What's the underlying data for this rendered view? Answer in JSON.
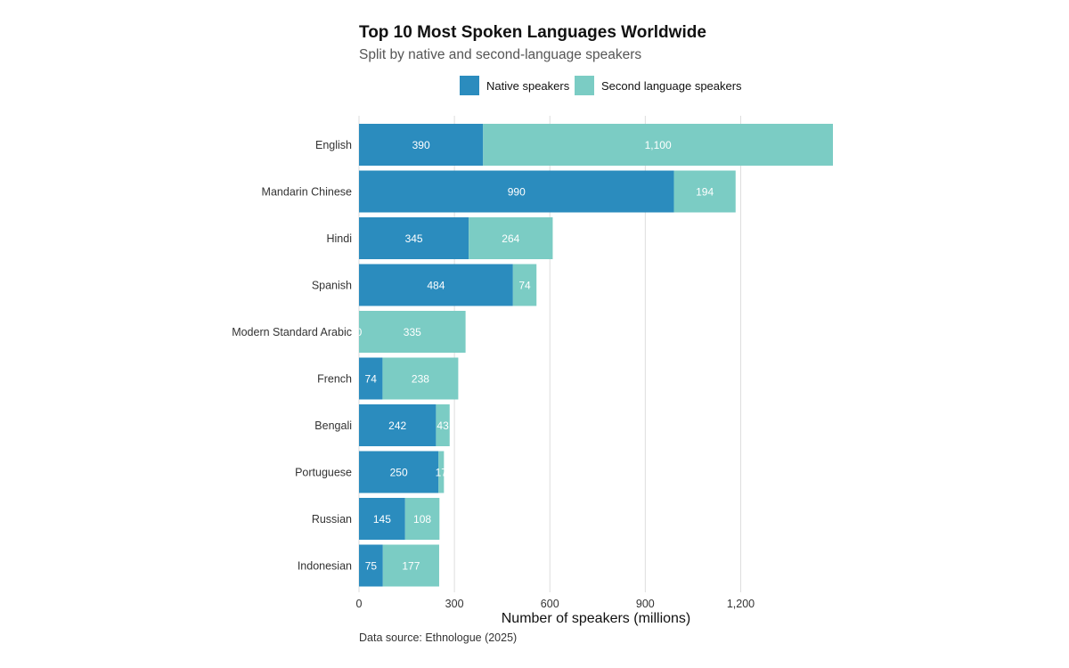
{
  "chart_data": {
    "type": "bar",
    "orientation": "horizontal",
    "stacked": true,
    "title": "Top 10 Most Spoken Languages Worldwide",
    "subtitle": "Split by native and second-language speakers",
    "xlabel": "Number of speakers (millions)",
    "ylabel": "",
    "caption": "Data source: Ethnologue (2025)",
    "xlim": [
      0,
      1490
    ],
    "xticks": [
      0,
      300,
      600,
      900,
      1200
    ],
    "xtick_labels": [
      "0",
      "300",
      "600",
      "900",
      "1,200"
    ],
    "grid": "vertical",
    "legend_position": "top",
    "categories": [
      "English",
      "Mandarin Chinese",
      "Hindi",
      "Spanish",
      "Modern Standard Arabic",
      "French",
      "Bengali",
      "Portuguese",
      "Russian",
      "Indonesian"
    ],
    "series": [
      {
        "name": "Native speakers",
        "color": "#2b8cbe",
        "values": [
          390,
          990,
          345,
          484,
          0,
          74,
          242,
          250,
          145,
          75
        ],
        "value_labels": [
          "390",
          "990",
          "345",
          "484",
          "0",
          "74",
          "242",
          "250",
          "145",
          "75"
        ]
      },
      {
        "name": "Second language speakers",
        "color": "#7bccc4",
        "values": [
          1100,
          194,
          264,
          74,
          335,
          238,
          43,
          17,
          108,
          177
        ],
        "value_labels": [
          "1,100",
          "194",
          "264",
          "74",
          "335",
          "238",
          "43",
          "17",
          "108",
          "177"
        ]
      }
    ]
  }
}
